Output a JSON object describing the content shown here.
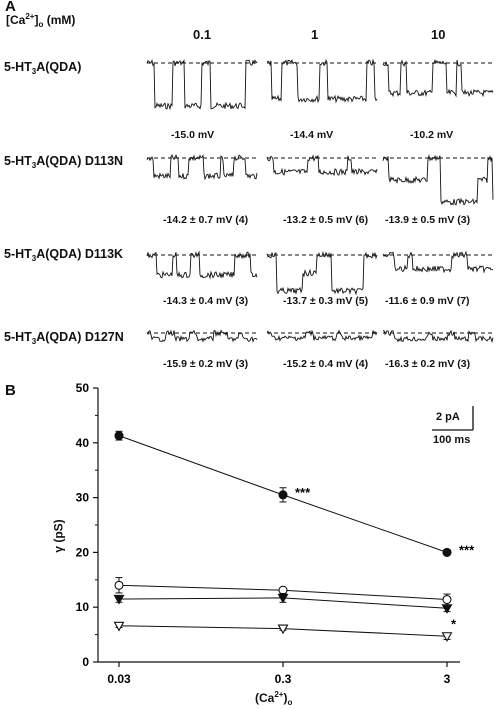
{
  "panel_a": {
    "letter": "A",
    "header": {
      "pre": "[Ca",
      "sup": "2+",
      "mid": "]",
      "sub": "o",
      "post": " (mM)"
    },
    "concentrations": [
      "0.1",
      "1",
      "10"
    ],
    "rows": [
      {
        "label_pre": "5-HT",
        "label_sub": "3",
        "label_post": "A(QDA)",
        "voltages": [
          "-15.0 mV",
          "-14.4 mV",
          "-10.2 mV"
        ]
      },
      {
        "label_pre": "5-HT",
        "label_sub": "3",
        "label_post": "A(QDA) D113N",
        "voltages": [
          "-14.2 ± 0.7 mV (4)",
          "-13.2 ± 0.5 mV (6)",
          "-13.9 ± 0.5 mV (3)"
        ]
      },
      {
        "label_pre": "5-HT",
        "label_sub": "3",
        "label_post": "A(QDA) D113K",
        "voltages": [
          "-14.3 ± 0.4 mV (3)",
          "-13.7 ± 0.3 mV (5)",
          "-11.6 ± 0.9 mV (7)"
        ]
      },
      {
        "label_pre": "5-HT",
        "label_sub": "3",
        "label_post": "A(QDA) D127N",
        "voltages": [
          "-15.9 ± 0.2 mV (3)",
          "-15.2 ± 0.4 mV (4)",
          "-16.3 ± 0.2 mV (3)"
        ]
      }
    ]
  },
  "panel_b": {
    "letter": "B"
  },
  "scale_bar": {
    "current": "2 pA",
    "time": "100 ms"
  },
  "chart_data": {
    "type": "line",
    "x_scale": "log",
    "x": [
      0.03,
      0.3,
      3
    ],
    "xticks": [
      "0.03",
      "0.3",
      "3"
    ],
    "xlabel_pre": "(Ca",
    "xlabel_sup": "2+",
    "xlabel_mid": ")",
    "xlabel_sub": "o",
    "ylabel": "γ (pS)",
    "ylim": [
      0,
      50
    ],
    "yticks": [
      "0",
      "10",
      "20",
      "30",
      "40",
      "50"
    ],
    "grid": false,
    "series": [
      {
        "marker": "filled-circle",
        "values": [
          41.3,
          30.5,
          20.0
        ],
        "errors": [
          0.8,
          1.3,
          0.3
        ],
        "annotations": [
          "",
          "***",
          "***"
        ]
      },
      {
        "marker": "open-circle",
        "values": [
          14.0,
          13.1,
          11.4
        ],
        "errors": [
          1.4,
          0.4,
          1.0
        ],
        "annotations": [
          "",
          "",
          ""
        ]
      },
      {
        "marker": "filled-down-triangle",
        "values": [
          11.5,
          11.7,
          9.8
        ],
        "errors": [
          0.6,
          0.8,
          0.6
        ],
        "annotations": [
          "",
          "",
          "*"
        ]
      },
      {
        "marker": "open-down-triangle",
        "values": [
          6.6,
          6.1,
          4.7
        ],
        "errors": [
          0.3,
          0.3,
          0.6
        ],
        "annotations": [
          "",
          "",
          ""
        ]
      }
    ]
  }
}
